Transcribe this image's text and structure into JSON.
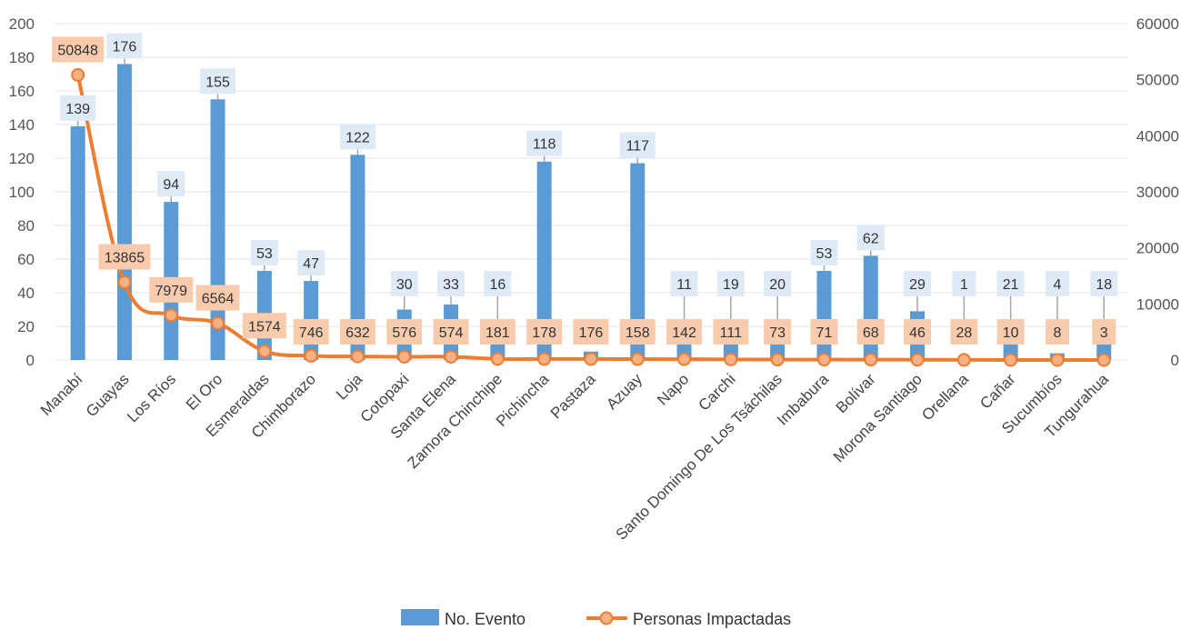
{
  "chart_data": {
    "type": "bar-line",
    "categories": [
      "Manabí",
      "Guayas",
      "Los Ríos",
      "El Oro",
      "Esmeraldas",
      "Chimborazo",
      "Loja",
      "Cotopaxi",
      "Santa Elena",
      "Zamora Chinchipe",
      "Pichincha",
      "Pastaza",
      "Azuay",
      "Napo",
      "Carchi",
      "Santo Domingo De Los Tsáchilas",
      "Imbabura",
      "Bolívar",
      "Morona Santiago",
      "Orellana",
      "Cañar",
      "Sucumbíos",
      "Tungurahua"
    ],
    "series": [
      {
        "name": "No. Evento",
        "type": "bar",
        "axis": "left",
        "color": "#5b9bd5",
        "values": [
          139,
          176,
          94,
          155,
          53,
          47,
          122,
          30,
          33,
          16,
          118,
          5,
          117,
          11,
          19,
          20,
          53,
          62,
          29,
          1,
          21,
          4,
          18
        ]
      },
      {
        "name": "Personas Impactadas",
        "type": "line",
        "axis": "right",
        "color": "#ed7d31",
        "values": [
          50848,
          13865,
          7979,
          6564,
          1574,
          746,
          632,
          576,
          574,
          181,
          178,
          176,
          158,
          142,
          111,
          73,
          71,
          68,
          46,
          28,
          10,
          8,
          3
        ]
      }
    ],
    "bar_labels": [
      "139",
      "176",
      "94",
      "155",
      "53",
      "47",
      "122",
      "30",
      "33",
      "16",
      "118",
      "",
      "117",
      "11",
      "19",
      "20",
      "53",
      "62",
      "29",
      "1",
      "21",
      "4",
      "18"
    ],
    "line_labels": [
      "50848",
      "13865",
      "7979",
      "6564",
      "1574",
      "746",
      "632",
      "576",
      "574",
      "181",
      "178",
      "176",
      "158",
      "142",
      "111",
      "73",
      "71",
      "68",
      "46",
      "28",
      "10",
      "8",
      "3"
    ],
    "y_left": {
      "min": 0,
      "max": 200,
      "ticks": [
        "0",
        "20",
        "40",
        "60",
        "80",
        "100",
        "120",
        "140",
        "160",
        "180",
        "200"
      ]
    },
    "y_right": {
      "min": 0,
      "max": 60000,
      "ticks": [
        "0",
        "10000",
        "20000",
        "30000",
        "40000",
        "50000",
        "60000"
      ]
    },
    "grid": true,
    "legend_position": "bottom"
  }
}
